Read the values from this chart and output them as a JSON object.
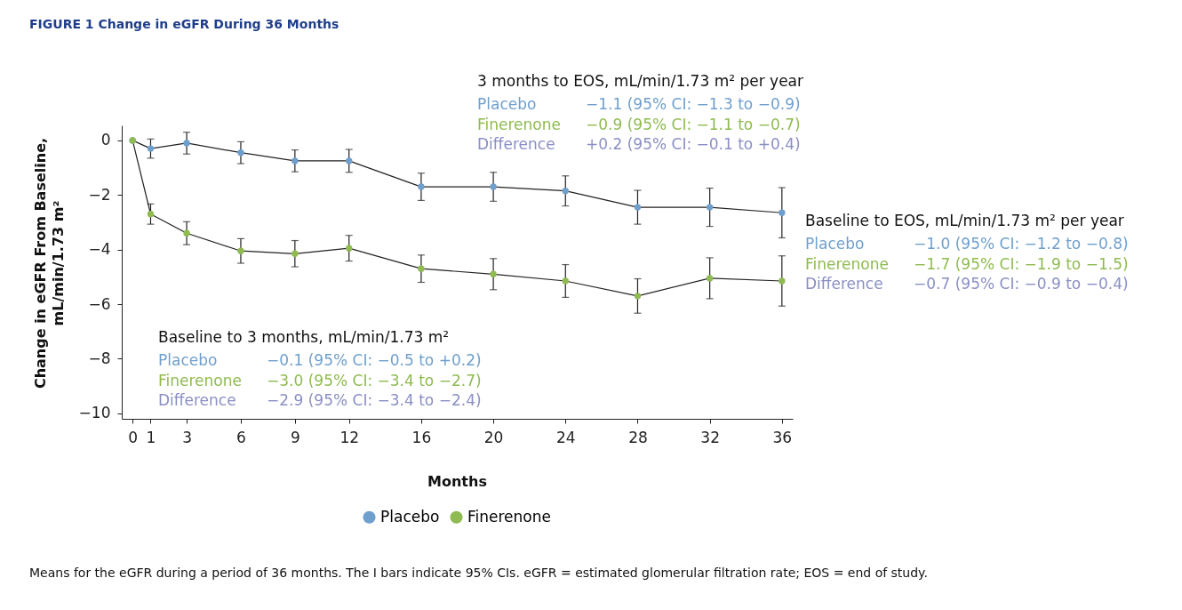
{
  "chart_data": {
    "type": "line",
    "title": "FIGURE 1  Change in eGFR During 36 Months",
    "xlabel": "Months",
    "ylabel": "Change in eGFR From Baseline, mL/min/1.73 m²",
    "x": [
      0,
      1,
      3,
      6,
      9,
      12,
      16,
      20,
      24,
      28,
      32,
      36
    ],
    "series": [
      {
        "name": "Placebo",
        "color": "#6f9fcd",
        "values": [
          0,
          -0.3,
          -0.1,
          -0.45,
          -0.75,
          -0.75,
          -1.7,
          -1.7,
          -1.85,
          -2.45,
          -2.45,
          -2.65
        ],
        "errors": [
          null,
          0.35,
          0.4,
          0.4,
          0.4,
          0.42,
          0.5,
          0.53,
          0.55,
          0.62,
          0.7,
          0.92
        ]
      },
      {
        "name": "Finerenone",
        "color": "#8fbb50",
        "values": [
          0,
          -2.7,
          -3.4,
          -4.05,
          -4.15,
          -3.95,
          -4.7,
          -4.9,
          -5.15,
          -5.7,
          -5.05,
          -5.15
        ],
        "errors": [
          null,
          0.37,
          0.42,
          0.45,
          0.48,
          0.47,
          0.5,
          0.57,
          0.6,
          0.63,
          0.75,
          0.92
        ]
      }
    ],
    "xlim": [
      -0.6,
      36.6
    ],
    "xticks": [
      0,
      1,
      3,
      6,
      9,
      12,
      16,
      20,
      24,
      28,
      32,
      36
    ],
    "ylim": [
      -10.2,
      0.55
    ],
    "yticks": [
      0,
      -2,
      -4,
      -6,
      -8,
      -10
    ],
    "grid": false,
    "legend": "bottom",
    "marker": "circle",
    "line_style": "solid",
    "annotations": [
      "Baseline to 3 months, mL/min/1.73 m²",
      "Placebo",
      "−0.1 (95% CI: −0.5 to +0.2)",
      "Finerenone",
      "−3.0 (95% CI: −3.4 to −2.7)",
      "Difference",
      "−2.9 (95% CI: −3.4 to −2.4)",
      "3 months to EOS, mL/min/1.73 m² per year",
      "Placebo",
      "−1.1 (95% CI: −1.3 to −0.9)",
      "Finerenone",
      "−0.9 (95% CI: −1.1 to −0.7)",
      "Difference",
      "+0.2 (95% CI: −0.1 to +0.4)",
      "Baseline to EOS, mL/min/1.73 m² per year",
      "Placebo",
      "−1.0 (95% CI: −1.2 to −0.8)",
      "Finerenone",
      "−1.7 (95% CI: −1.9 to −1.5)",
      "Difference",
      "−0.7 (95% CI: −0.9 to −0.4)",
      "Means for the eGFR during a period of 36 months. The I bars indicate 95% CIs. eGFR = estimated glomerular filtration rate; EOS = end of study."
    ]
  }
}
